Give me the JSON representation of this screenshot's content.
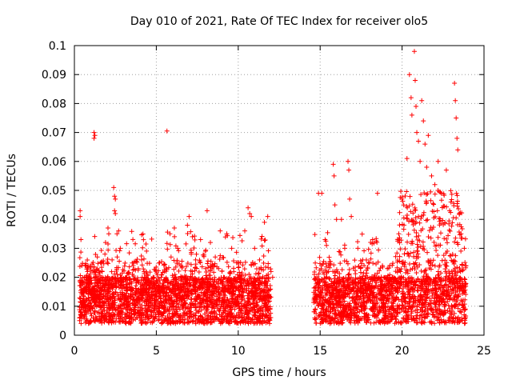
{
  "chart_data": {
    "type": "scatter",
    "title": "Day 010 of 2021, Rate Of TEC Index for receiver olo5",
    "xlabel": "GPS time / hours",
    "ylabel": "ROTI / TECUs",
    "xlim": [
      0,
      25
    ],
    "ylim": [
      0,
      0.1
    ],
    "x_ticks": [
      0,
      5,
      10,
      15,
      20,
      25
    ],
    "x_tick_labels": [
      "0",
      "5",
      "10",
      "15",
      "20",
      "25"
    ],
    "y_ticks": [
      0,
      0.01,
      0.02,
      0.03,
      0.04,
      0.05,
      0.06,
      0.07,
      0.08,
      0.09,
      0.1
    ],
    "y_tick_labels": [
      "0",
      "0.01",
      "0.02",
      "0.03",
      "0.04",
      "0.05",
      "0.06",
      "0.07",
      "0.08",
      "0.09",
      "0.1"
    ],
    "grid": true,
    "marker": "+",
    "colors": {
      "points": "#ff0000",
      "grid": "#a0a0a0",
      "axis": "#000000"
    },
    "data_gap": [
      12.0,
      14.6
    ],
    "points": [
      [
        0.35,
        0.043
      ],
      [
        0.35,
        0.041
      ],
      [
        0.4,
        0.033
      ],
      [
        0.45,
        0.024
      ],
      [
        0.5,
        0.015
      ],
      [
        0.55,
        0.012
      ],
      [
        0.8,
        0.022
      ],
      [
        0.9,
        0.02
      ],
      [
        1.2,
        0.07
      ],
      [
        1.2,
        0.068
      ],
      [
        1.25,
        0.069
      ],
      [
        1.4,
        0.027
      ],
      [
        1.6,
        0.025
      ],
      [
        1.9,
        0.032
      ],
      [
        2.05,
        0.037
      ],
      [
        2.1,
        0.035
      ],
      [
        2.3,
        0.026
      ],
      [
        2.4,
        0.051
      ],
      [
        2.45,
        0.048
      ],
      [
        2.5,
        0.047
      ],
      [
        2.45,
        0.043
      ],
      [
        2.5,
        0.042
      ],
      [
        2.6,
        0.035
      ],
      [
        2.7,
        0.036
      ],
      [
        2.8,
        0.03
      ],
      [
        3.2,
        0.02
      ],
      [
        3.5,
        0.018
      ],
      [
        3.9,
        0.023
      ],
      [
        4.1,
        0.026
      ],
      [
        4.4,
        0.017
      ],
      [
        4.8,
        0.02
      ],
      [
        5.2,
        0.025
      ],
      [
        5.5,
        0.022
      ],
      [
        5.65,
        0.0705
      ],
      [
        5.9,
        0.027
      ],
      [
        6.1,
        0.037
      ],
      [
        6.3,
        0.03
      ],
      [
        6.5,
        0.024
      ],
      [
        6.9,
        0.038
      ],
      [
        7.0,
        0.041
      ],
      [
        7.2,
        0.034
      ],
      [
        7.4,
        0.026
      ],
      [
        7.7,
        0.033
      ],
      [
        8.0,
        0.029
      ],
      [
        8.1,
        0.043
      ],
      [
        8.3,
        0.032
      ],
      [
        8.6,
        0.027
      ],
      [
        8.9,
        0.036
      ],
      [
        9.3,
        0.035
      ],
      [
        9.6,
        0.03
      ],
      [
        9.9,
        0.025
      ],
      [
        10.4,
        0.036
      ],
      [
        10.6,
        0.044
      ],
      [
        10.7,
        0.042
      ],
      [
        10.8,
        0.041
      ],
      [
        11.0,
        0.03
      ],
      [
        11.3,
        0.026
      ],
      [
        11.6,
        0.039
      ],
      [
        11.8,
        0.041
      ],
      [
        12.0,
        0.022
      ],
      [
        12.1,
        0.02
      ],
      [
        14.9,
        0.049
      ],
      [
        15.1,
        0.049
      ],
      [
        15.3,
        0.033
      ],
      [
        15.5,
        0.022
      ],
      [
        15.8,
        0.059
      ],
      [
        15.85,
        0.055
      ],
      [
        15.9,
        0.045
      ],
      [
        16.0,
        0.04
      ],
      [
        16.3,
        0.04
      ],
      [
        16.5,
        0.03
      ],
      [
        16.7,
        0.06
      ],
      [
        16.75,
        0.057
      ],
      [
        16.8,
        0.047
      ],
      [
        16.9,
        0.041
      ],
      [
        17.3,
        0.03
      ],
      [
        17.6,
        0.026
      ],
      [
        17.9,
        0.023
      ],
      [
        18.2,
        0.033
      ],
      [
        18.5,
        0.049
      ],
      [
        18.8,
        0.024
      ],
      [
        19.1,
        0.023
      ],
      [
        19.4,
        0.02
      ],
      [
        19.8,
        0.035
      ],
      [
        20.1,
        0.045
      ],
      [
        20.3,
        0.061
      ],
      [
        20.45,
        0.09
      ],
      [
        20.55,
        0.082
      ],
      [
        20.6,
        0.076
      ],
      [
        20.75,
        0.098
      ],
      [
        20.8,
        0.088
      ],
      [
        20.85,
        0.079
      ],
      [
        20.9,
        0.07
      ],
      [
        21.0,
        0.067
      ],
      [
        21.1,
        0.06
      ],
      [
        21.2,
        0.081
      ],
      [
        21.3,
        0.074
      ],
      [
        21.4,
        0.066
      ],
      [
        21.5,
        0.058
      ],
      [
        21.6,
        0.069
      ],
      [
        21.8,
        0.055
      ],
      [
        22.0,
        0.052
      ],
      [
        22.2,
        0.06
      ],
      [
        22.4,
        0.049
      ],
      [
        22.7,
        0.057
      ],
      [
        22.9,
        0.043
      ],
      [
        23.2,
        0.087
      ],
      [
        23.25,
        0.081
      ],
      [
        23.3,
        0.075
      ],
      [
        23.35,
        0.068
      ],
      [
        23.4,
        0.064
      ],
      [
        23.5,
        0.042
      ],
      [
        23.6,
        0.035
      ],
      [
        23.8,
        0.03
      ],
      [
        23.9,
        0.024
      ]
    ]
  }
}
